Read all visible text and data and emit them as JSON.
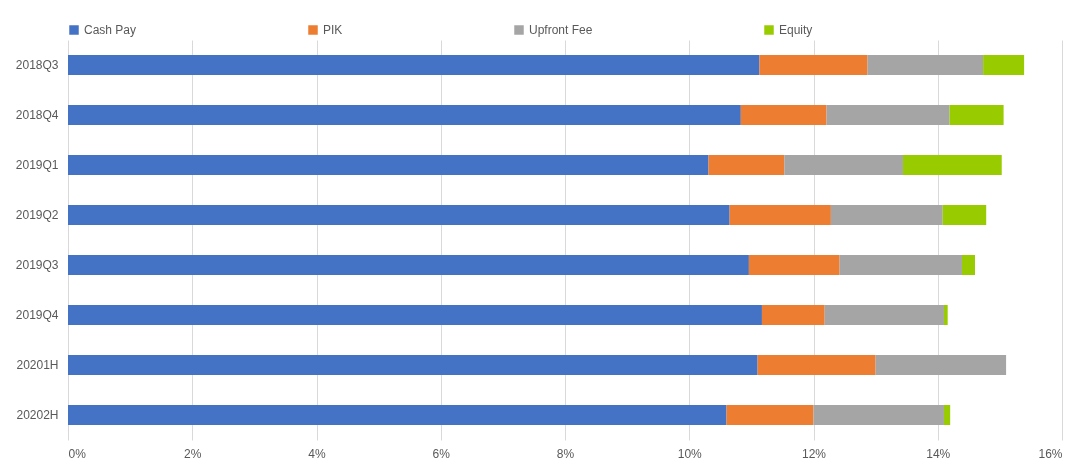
{
  "chart_data": {
    "type": "bar",
    "orientation": "horizontal",
    "stacked": true,
    "categories": [
      "2018Q3",
      "2018Q4",
      "2019Q1",
      "2019Q2",
      "2019Q3",
      "2019Q4",
      "20201H",
      "20202H"
    ],
    "series": [
      {
        "name": "Cash Pay",
        "color": "#4472c4",
        "values": [
          11.13,
          10.83,
          10.31,
          10.65,
          10.96,
          11.17,
          11.1,
          10.6
        ]
      },
      {
        "name": "PIK",
        "color": "#ed7d31",
        "values": [
          1.74,
          1.38,
          1.22,
          1.63,
          1.46,
          1.01,
          1.9,
          1.4
        ]
      },
      {
        "name": "Upfront Fee",
        "color": "#a5a5a5",
        "values": [
          1.86,
          1.98,
          1.91,
          1.8,
          1.97,
          1.92,
          2.1,
          2.1
        ]
      },
      {
        "name": "Equity",
        "color": "#99cc00",
        "values": [
          0.66,
          0.87,
          1.59,
          0.7,
          0.21,
          0.06,
          null,
          0.1
        ]
      }
    ],
    "xlim": [
      0,
      16
    ],
    "xticks": [
      {
        "value": 0,
        "label": "0%"
      },
      {
        "value": 2,
        "label": "2%"
      },
      {
        "value": 4,
        "label": "4%"
      },
      {
        "value": 6,
        "label": "6%"
      },
      {
        "value": 8,
        "label": "8%"
      },
      {
        "value": 10,
        "label": "10%"
      },
      {
        "value": 12,
        "label": "12%"
      },
      {
        "value": 14,
        "label": "14%"
      },
      {
        "value": 16,
        "label": "16%"
      }
    ],
    "grid": "x",
    "legend": "top"
  }
}
